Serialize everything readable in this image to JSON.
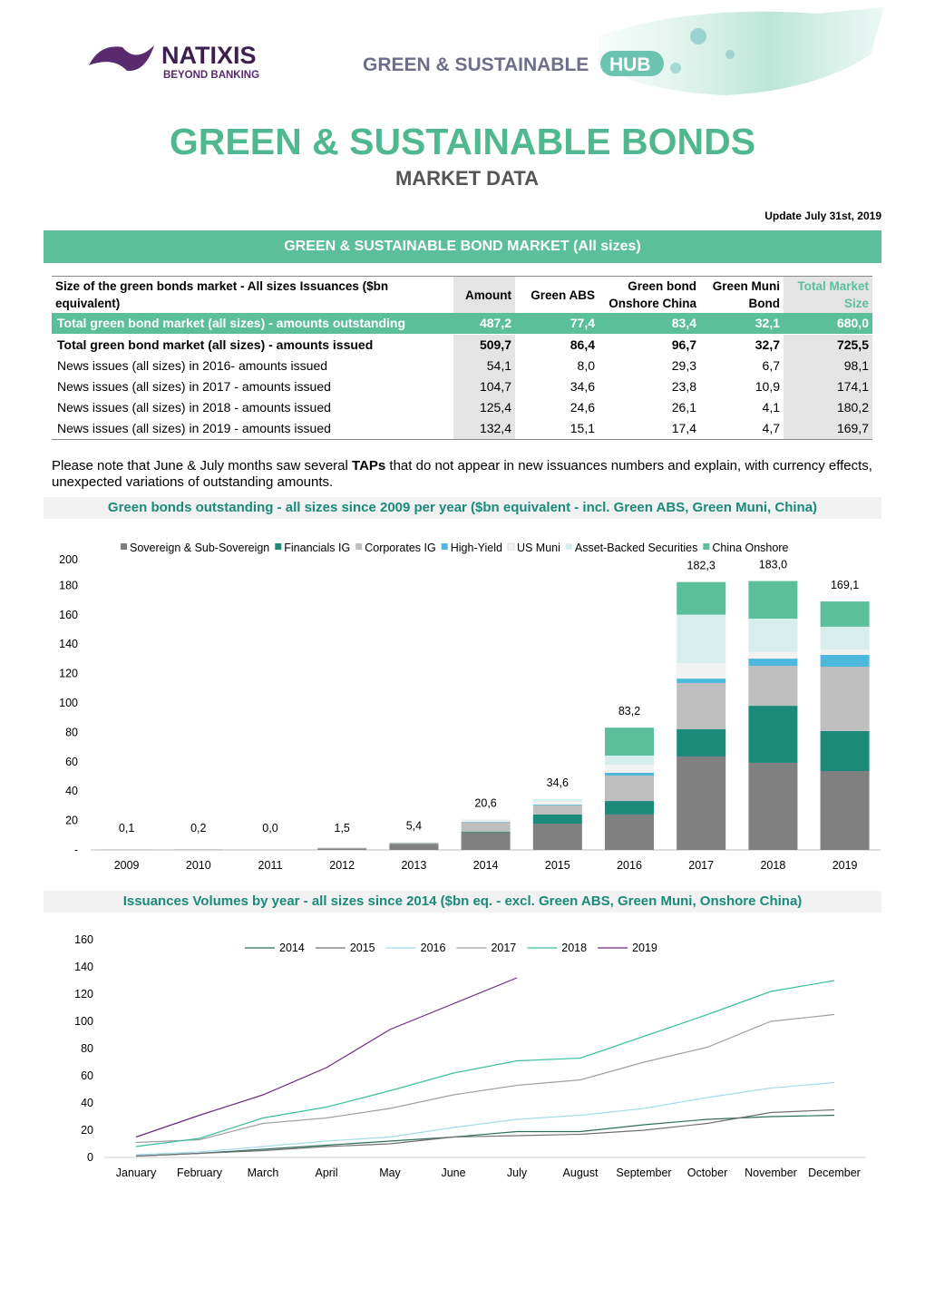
{
  "header": {
    "logo_name": "NATIXIS",
    "logo_tagline": "BEYOND BANKING",
    "hub_text": "GREEN & SUSTAINABLE",
    "hub_badge": "HUB"
  },
  "title": "GREEN & SUSTAINABLE BONDS",
  "subtitle": "MARKET DATA",
  "update": "Update July 31st, 2019",
  "section_title": "GREEN & SUSTAINABLE BOND MARKET (All sizes)",
  "table": {
    "header": [
      "Size of the green bonds market - All sizes Issuances ($bn equivalent)",
      "Amount",
      "Green ABS",
      "Green bond Onshore China",
      "Green Muni Bond",
      "Total Market Size"
    ],
    "rows": [
      [
        "Total green bond market (all sizes) - amounts outstanding",
        "487,2",
        "77,4",
        "83,4",
        "32,1",
        "680,0"
      ],
      [
        "Total green bond market (all sizes) - amounts issued",
        "509,7",
        "86,4",
        "96,7",
        "32,7",
        "725,5"
      ],
      [
        "News issues (all sizes) in 2016- amounts issued",
        "54,1",
        "8,0",
        "29,3",
        "6,7",
        "98,1"
      ],
      [
        "News issues (all sizes) in 2017 - amounts issued",
        "104,7",
        "34,6",
        "23,8",
        "10,9",
        "174,1"
      ],
      [
        "News issues (all sizes) in 2018 - amounts issued",
        "125,4",
        "24,6",
        "26,1",
        "4,1",
        "180,2"
      ],
      [
        "News issues (all sizes) in 2019 - amounts issued",
        "132,4",
        "15,1",
        "17,4",
        "4,7",
        "169,7"
      ]
    ]
  },
  "note": {
    "before": "Please note that June & July months saw several ",
    "bold": "TAPs",
    "after": " that do not appear in new issuances numbers and explain, with currency effects, unexpected variations of outstanding amounts."
  },
  "chart_data": [
    {
      "type": "stacked_bar",
      "title": "Green bonds outstanding - all sizes since 2009 per year ($bn equivalent - incl. Green ABS, Green Muni, China)",
      "categories": [
        "2009",
        "2010",
        "2011",
        "2012",
        "2013",
        "2014",
        "2015",
        "2016",
        "2017",
        "2018",
        "2019"
      ],
      "series": [
        {
          "name": "Sovereign & Sub-Sovereign",
          "color": "#808080",
          "values": [
            0.1,
            0.2,
            0.0,
            1.0,
            4.0,
            12.0,
            17.9,
            24.1,
            63.6,
            59.3,
            53.7
          ]
        },
        {
          "name": "Financials IG",
          "color": "#1b8a79",
          "values": [
            0.0,
            0.0,
            0.0,
            0.0,
            0.2,
            0.5,
            6.2,
            9.2,
            18.5,
            38.8,
            27.2
          ]
        },
        {
          "name": "Corporates IG",
          "color": "#bfbfbf",
          "values": [
            0.0,
            0.0,
            0.0,
            0.5,
            0.8,
            6.3,
            6.1,
            17.3,
            31.5,
            27.2,
            43.8
          ]
        },
        {
          "name": "High-Yield",
          "color": "#4bb8dc",
          "values": [
            0.0,
            0.0,
            0.0,
            0.0,
            0.0,
            0.3,
            0.6,
            1.9,
            3.0,
            4.9,
            8.0
          ]
        },
        {
          "name": "US Muni",
          "color": "#f2f2f2",
          "values": [
            0.0,
            0.0,
            0.0,
            0.0,
            0.2,
            1.0,
            2.0,
            5.5,
            10.5,
            4.4,
            3.7
          ]
        },
        {
          "name": "Asset-Backed Securities",
          "color": "#d6efed",
          "values": [
            0.0,
            0.0,
            0.0,
            0.0,
            0.2,
            0.5,
            1.8,
            6.2,
            33.0,
            22.8,
            15.5
          ]
        },
        {
          "name": "China Onshore",
          "color": "#5cbf9c",
          "values": [
            0.0,
            0.0,
            0.0,
            0.0,
            0.0,
            0.0,
            0.0,
            19.0,
            22.2,
            25.6,
            17.2
          ]
        }
      ],
      "totals": {
        "values": [
          0.1,
          0.2,
          0.0,
          1.5,
          5.4,
          20.6,
          34.6,
          83.2,
          182.3,
          183.0,
          169.1
        ],
        "value_labels": [
          "0,1",
          "0,2",
          "0,0",
          "1,5",
          "5,4",
          "20,6",
          "34,6",
          "83,2",
          "182,3",
          "183,0",
          "169,1"
        ]
      },
      "ylim": [
        0,
        200
      ],
      "yticks": [
        {
          "value": 0,
          "label": "-"
        },
        20,
        40,
        60,
        80,
        100,
        120,
        140,
        160,
        180,
        200
      ],
      "legend": "top"
    },
    {
      "type": "line",
      "title": "Issuances Volumes by year - all sizes since 2014 ($bn eq. - excl. Green ABS, Green Muni, Onshore China)",
      "categories": [
        "January",
        "February",
        "March",
        "April",
        "May",
        "June",
        "July",
        "August",
        "September",
        "October",
        "November",
        "December"
      ],
      "series": [
        {
          "name": "2014",
          "color": "#2e6e5e",
          "values": [
            1,
            3,
            6,
            9,
            12,
            15,
            19,
            19,
            24,
            28,
            30,
            31
          ]
        },
        {
          "name": "2015",
          "color": "#707070",
          "values": [
            1,
            3,
            5,
            8,
            10,
            15,
            16,
            17,
            20,
            25,
            33,
            35
          ]
        },
        {
          "name": "2016",
          "color": "#a6dcea",
          "values": [
            2,
            4,
            8,
            12,
            15,
            22,
            28,
            31,
            36,
            44,
            51,
            55
          ]
        },
        {
          "name": "2017",
          "color": "#a0a0a0",
          "values": [
            11,
            13,
            25,
            29,
            36,
            46,
            53,
            57,
            70,
            81,
            100,
            105
          ]
        },
        {
          "name": "2018",
          "color": "#3bbfa0",
          "values": [
            8,
            14,
            29,
            37,
            49,
            62,
            71,
            73,
            89,
            105,
            122,
            130
          ]
        },
        {
          "name": "2019",
          "color": "#6b2a80",
          "values": [
            15,
            31,
            46,
            66,
            94,
            113,
            132,
            null,
            null,
            null,
            null,
            null
          ]
        }
      ],
      "ylim": [
        0,
        160
      ],
      "yticks": [
        0,
        20,
        40,
        60,
        80,
        100,
        120,
        140,
        160
      ],
      "legend": "top"
    }
  ]
}
